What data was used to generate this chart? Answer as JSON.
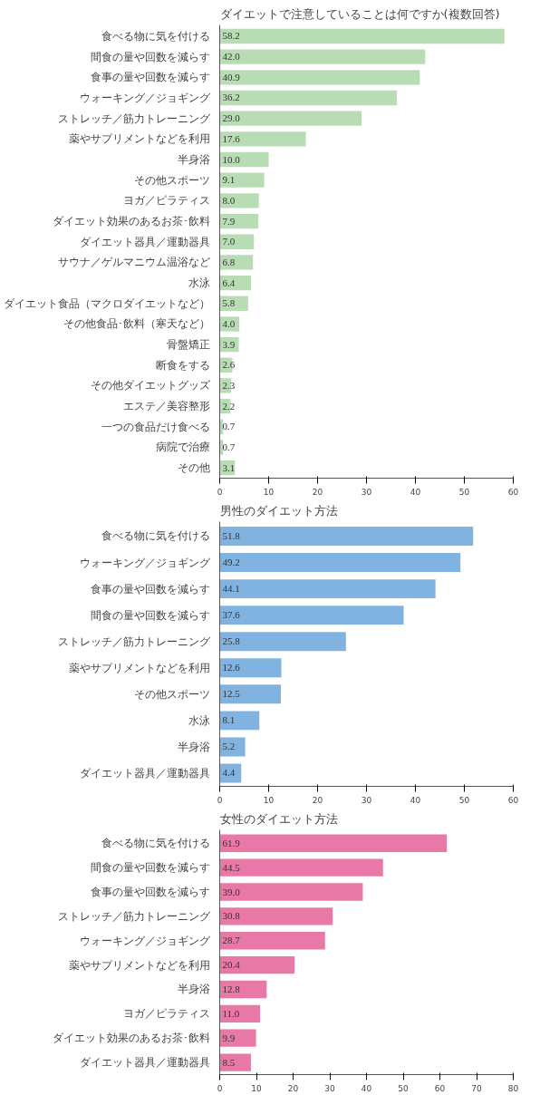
{
  "chart_data": [
    {
      "type": "bar",
      "orientation": "horizontal",
      "title": "ダイエットで注意していることは何ですか(複数回答)",
      "categories": [
        "食べる物に気を付ける",
        "間食の量や回数を減らす",
        "食事の量や回数を減らす",
        "ウォーキング／ジョギング",
        "ストレッチ／筋力トレーニング",
        "薬やサプリメントなどを利用",
        "半身浴",
        "その他スポーツ",
        "ヨガ／ピラティス",
        "ダイエット効果のあるお茶･飲料",
        "ダイエット器具／運動器具",
        "サウナ／ゲルマニウム温浴など",
        "水泳",
        "ダイエット食品（マクロダイエットなど）",
        "その他食品･飲料（寒天など）",
        "骨盤矯正",
        "断食をする",
        "その他ダイエットグッズ",
        "エステ／美容整形",
        "一つの食品だけ食べる",
        "病院で治療",
        "その他"
      ],
      "values": [
        58.2,
        42.0,
        40.9,
        36.2,
        29.0,
        17.6,
        10.0,
        9.1,
        8.0,
        7.9,
        7.0,
        6.8,
        6.4,
        5.8,
        4.0,
        3.9,
        2.6,
        2.3,
        2.2,
        0.7,
        0.7,
        3.1
      ],
      "value_labels": [
        "58.2",
        "42.0",
        "40.9",
        "36.2",
        "29.0",
        "17.6",
        "10.0",
        "9.1",
        "8.0",
        "7.9",
        "7.0",
        "6.8",
        "6.4",
        "5.8",
        "4.0",
        "3.9",
        "2.6",
        "2.3",
        "2.2",
        "0.7",
        "0.7",
        "3.1"
      ],
      "color": "#b8dcb4",
      "xlim": [
        0,
        60
      ],
      "xticks": [
        0,
        10,
        20,
        30,
        40,
        50,
        60
      ],
      "grid": false
    },
    {
      "type": "bar",
      "orientation": "horizontal",
      "title": "男性のダイエット方法",
      "categories": [
        "食べる物に気を付ける",
        "ウォーキング／ジョギング",
        "食事の量や回数を減らす",
        "間食の量や回数を減らす",
        "ストレッチ／筋力トレーニング",
        "薬やサプリメントなどを利用",
        "その他スポーツ",
        "水泳",
        "半身浴",
        "ダイエット器具／運動器具"
      ],
      "values": [
        51.8,
        49.2,
        44.1,
        37.6,
        25.8,
        12.6,
        12.5,
        8.1,
        5.2,
        4.4
      ],
      "value_labels": [
        "51.8",
        "49.2",
        "44.1",
        "37.6",
        "25.8",
        "12.6",
        "12.5",
        "8.1",
        "5.2",
        "4.4"
      ],
      "color": "#80b3e0",
      "xlim": [
        0,
        60
      ],
      "xticks": [
        0,
        10,
        20,
        30,
        40,
        50,
        60
      ],
      "grid": false
    },
    {
      "type": "bar",
      "orientation": "horizontal",
      "title": "女性のダイエット方法",
      "categories": [
        "食べる物に気を付ける",
        "間食の量や回数を減らす",
        "食事の量や回数を減らす",
        "ストレッチ／筋力トレーニング",
        "ウォーキング／ジョギング",
        "薬やサプリメントなどを利用",
        "半身浴",
        "ヨガ／ピラティス",
        "ダイエット効果のあるお茶･飲料",
        "ダイエット器具／運動器具"
      ],
      "values": [
        61.9,
        44.5,
        39.0,
        30.8,
        28.7,
        20.4,
        12.8,
        11.0,
        9.9,
        8.5
      ],
      "value_labels": [
        "61.9",
        "44.5",
        "39.0",
        "30.8",
        "28.7",
        "20.4",
        "12.8",
        "11.0",
        "9.9",
        "8.5"
      ],
      "color": "#e878a6",
      "xlim": [
        0,
        80
      ],
      "xticks": [
        0,
        10,
        20,
        30,
        40,
        50,
        60,
        70,
        80
      ],
      "grid": false
    }
  ]
}
